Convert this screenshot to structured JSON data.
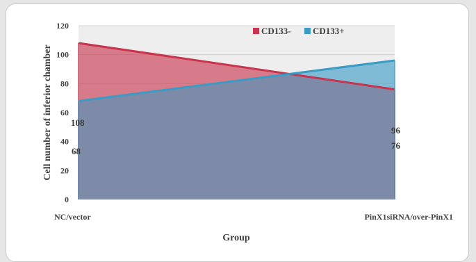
{
  "chart_data": {
    "type": "area",
    "categories": [
      "NC/vector",
      "PinX1siRNA/over-PinX1"
    ],
    "series": [
      {
        "name": "CD133-",
        "values": [
          108,
          76
        ],
        "color": "#c8334e"
      },
      {
        "name": "CD133+",
        "values": [
          68,
          96
        ],
        "color": "#3a9bc4"
      }
    ],
    "overlap_color": "#7d8aa8",
    "title": "",
    "xlabel": "Group",
    "ylabel": "Cell number of inferior chamber",
    "ylim": [
      0,
      120
    ],
    "yticks": [
      "0",
      "20",
      "40",
      "60",
      "80",
      "100",
      "120"
    ],
    "grid": true,
    "legend_position": "top-center",
    "data_labels": {
      "left": [
        "108",
        "68"
      ],
      "right": [
        "96",
        "76"
      ]
    }
  }
}
